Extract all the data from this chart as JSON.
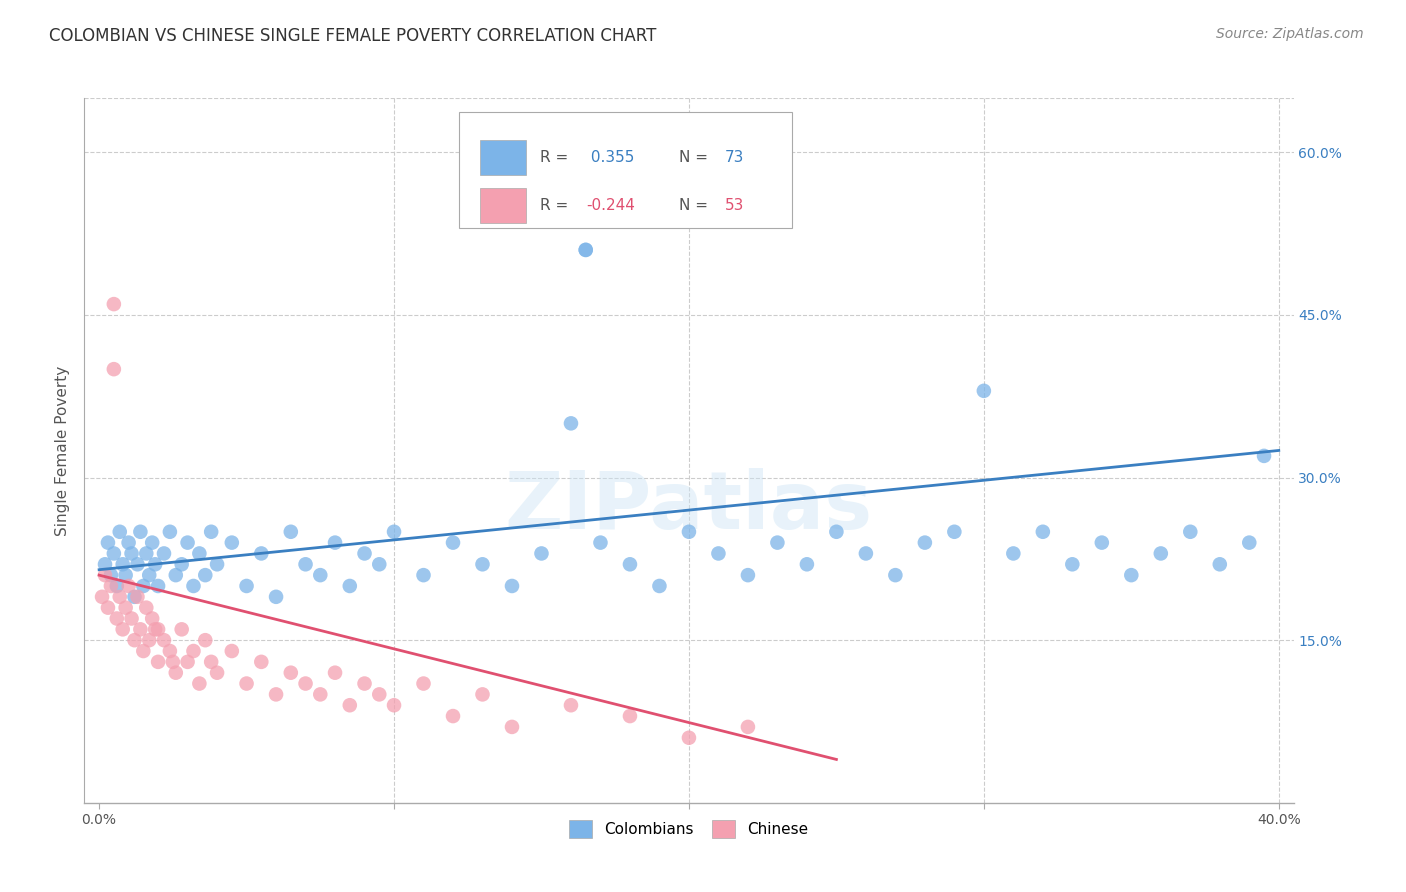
{
  "title": "COLOMBIAN VS CHINESE SINGLE FEMALE POVERTY CORRELATION CHART",
  "source": "Source: ZipAtlas.com",
  "ylabel": "Single Female Poverty",
  "xlim": [
    -0.005,
    0.405
  ],
  "ylim": [
    0.0,
    0.65
  ],
  "xtick_positions": [
    0.0,
    0.1,
    0.2,
    0.3,
    0.4
  ],
  "xticklabels": [
    "0.0%",
    "",
    "",
    "",
    "40.0%"
  ],
  "yticks_right": [
    0.15,
    0.3,
    0.45,
    0.6
  ],
  "ytick_labels_right": [
    "15.0%",
    "30.0%",
    "45.0%",
    "60.0%"
  ],
  "grid_color": "#cccccc",
  "background_color": "#ffffff",
  "colombian_color": "#7cb4e8",
  "chinese_color": "#f4a0b0",
  "colombian_R": 0.355,
  "colombian_N": 73,
  "chinese_R": -0.244,
  "chinese_N": 53,
  "trend_blue": "#3a7fc1",
  "trend_pink": "#e05070",
  "watermark": "ZIPatlas",
  "legend_colombians": "Colombians",
  "legend_chinese": "Chinese",
  "title_fontsize": 12,
  "axis_label_fontsize": 11,
  "tick_fontsize": 10,
  "source_fontsize": 10,
  "colombian_x": [
    0.002,
    0.003,
    0.004,
    0.005,
    0.006,
    0.007,
    0.008,
    0.009,
    0.01,
    0.011,
    0.012,
    0.013,
    0.014,
    0.015,
    0.016,
    0.017,
    0.018,
    0.019,
    0.02,
    0.022,
    0.024,
    0.026,
    0.028,
    0.03,
    0.032,
    0.034,
    0.036,
    0.038,
    0.04,
    0.045,
    0.05,
    0.055,
    0.06,
    0.065,
    0.07,
    0.075,
    0.08,
    0.085,
    0.09,
    0.095,
    0.1,
    0.11,
    0.12,
    0.13,
    0.14,
    0.15,
    0.16,
    0.165,
    0.17,
    0.18,
    0.19,
    0.2,
    0.21,
    0.22,
    0.23,
    0.24,
    0.25,
    0.26,
    0.27,
    0.28,
    0.29,
    0.3,
    0.31,
    0.32,
    0.33,
    0.34,
    0.35,
    0.36,
    0.37,
    0.38,
    0.39,
    0.395,
    0.165
  ],
  "colombian_y": [
    0.22,
    0.24,
    0.21,
    0.23,
    0.2,
    0.25,
    0.22,
    0.21,
    0.24,
    0.23,
    0.19,
    0.22,
    0.25,
    0.2,
    0.23,
    0.21,
    0.24,
    0.22,
    0.2,
    0.23,
    0.25,
    0.21,
    0.22,
    0.24,
    0.2,
    0.23,
    0.21,
    0.25,
    0.22,
    0.24,
    0.2,
    0.23,
    0.19,
    0.25,
    0.22,
    0.21,
    0.24,
    0.2,
    0.23,
    0.22,
    0.25,
    0.21,
    0.24,
    0.22,
    0.2,
    0.23,
    0.35,
    0.51,
    0.24,
    0.22,
    0.2,
    0.25,
    0.23,
    0.21,
    0.24,
    0.22,
    0.25,
    0.23,
    0.21,
    0.24,
    0.25,
    0.38,
    0.23,
    0.25,
    0.22,
    0.24,
    0.21,
    0.23,
    0.25,
    0.22,
    0.24,
    0.32,
    0.51
  ],
  "chinese_x": [
    0.001,
    0.002,
    0.003,
    0.004,
    0.005,
    0.005,
    0.006,
    0.007,
    0.008,
    0.009,
    0.01,
    0.011,
    0.012,
    0.013,
    0.014,
    0.015,
    0.016,
    0.017,
    0.018,
    0.019,
    0.02,
    0.022,
    0.024,
    0.026,
    0.028,
    0.03,
    0.032,
    0.034,
    0.036,
    0.038,
    0.04,
    0.045,
    0.05,
    0.055,
    0.06,
    0.065,
    0.07,
    0.075,
    0.08,
    0.085,
    0.09,
    0.095,
    0.1,
    0.11,
    0.12,
    0.13,
    0.14,
    0.16,
    0.18,
    0.2,
    0.22,
    0.02,
    0.025
  ],
  "chinese_y": [
    0.19,
    0.21,
    0.18,
    0.2,
    0.46,
    0.4,
    0.17,
    0.19,
    0.16,
    0.18,
    0.2,
    0.17,
    0.15,
    0.19,
    0.16,
    0.14,
    0.18,
    0.15,
    0.17,
    0.16,
    0.13,
    0.15,
    0.14,
    0.12,
    0.16,
    0.13,
    0.14,
    0.11,
    0.15,
    0.13,
    0.12,
    0.14,
    0.11,
    0.13,
    0.1,
    0.12,
    0.11,
    0.1,
    0.12,
    0.09,
    0.11,
    0.1,
    0.09,
    0.11,
    0.08,
    0.1,
    0.07,
    0.09,
    0.08,
    0.06,
    0.07,
    0.16,
    0.13
  ],
  "blue_trend_x": [
    0.0,
    0.4
  ],
  "blue_trend_y": [
    0.215,
    0.325
  ],
  "pink_trend_x": [
    0.0,
    0.25
  ],
  "pink_trend_y": [
    0.21,
    0.04
  ]
}
